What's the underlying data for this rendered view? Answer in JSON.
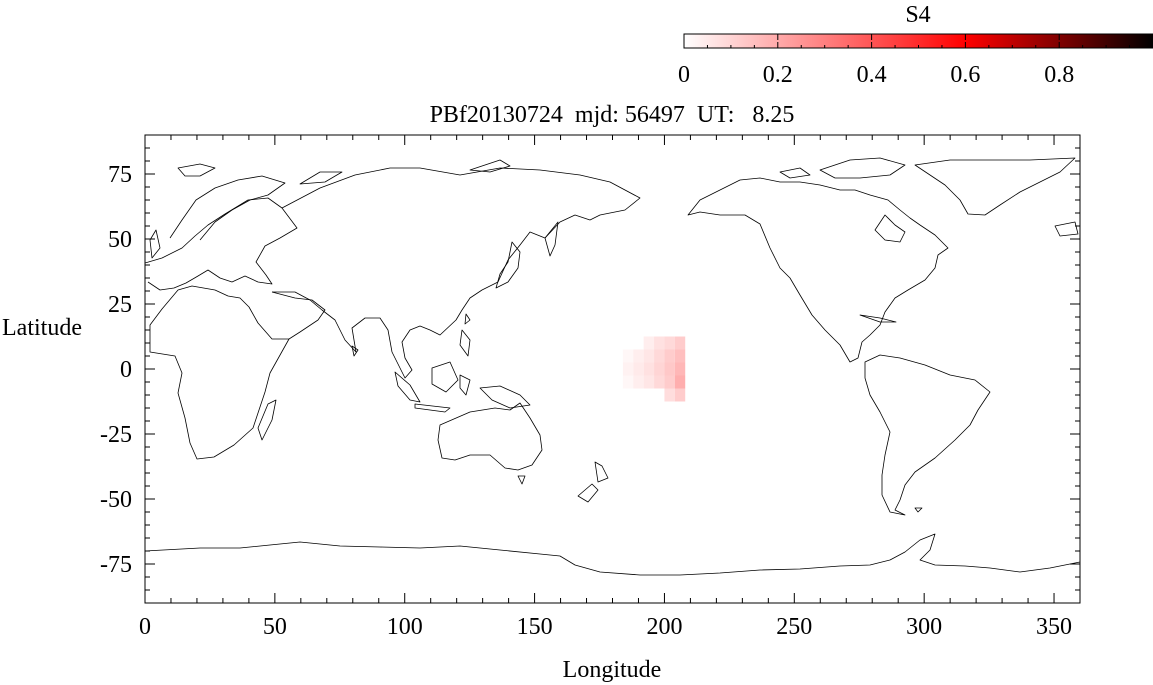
{
  "chart_data": {
    "type": "heatmap",
    "title": "PBf20130724  mjd: 56497  UT:   8.25",
    "xlabel": "Longitude",
    "ylabel": "Latitude",
    "xlim": [
      0,
      360
    ],
    "ylim": [
      -90,
      90
    ],
    "xticks": [
      0,
      50,
      100,
      150,
      200,
      250,
      300,
      350
    ],
    "yticks": [
      75,
      50,
      25,
      0,
      -25,
      -50,
      -75
    ],
    "grid": false,
    "basemap": "world coastlines",
    "colorbar": {
      "label": "S4",
      "placement": "top-right",
      "range": [
        0,
        1
      ],
      "ticks": [
        0,
        0.2,
        0.4,
        0.6,
        0.8
      ],
      "colormap": [
        "#ffffff",
        "#ff0000",
        "#000000"
      ]
    },
    "cells": [
      {
        "lon": 186,
        "lat": 5,
        "s4": 0.02
      },
      {
        "lon": 186,
        "lat": 0,
        "s4": 0.03
      },
      {
        "lon": 186,
        "lat": -5,
        "s4": 0.02
      },
      {
        "lon": 190,
        "lat": 5,
        "s4": 0.04
      },
      {
        "lon": 190,
        "lat": 0,
        "s4": 0.05
      },
      {
        "lon": 190,
        "lat": -5,
        "s4": 0.04
      },
      {
        "lon": 194,
        "lat": 10,
        "s4": 0.04
      },
      {
        "lon": 194,
        "lat": 5,
        "s4": 0.06
      },
      {
        "lon": 194,
        "lat": 0,
        "s4": 0.07
      },
      {
        "lon": 194,
        "lat": -5,
        "s4": 0.06
      },
      {
        "lon": 198,
        "lat": 10,
        "s4": 0.07
      },
      {
        "lon": 198,
        "lat": 5,
        "s4": 0.09
      },
      {
        "lon": 198,
        "lat": 0,
        "s4": 0.1
      },
      {
        "lon": 198,
        "lat": -5,
        "s4": 0.09
      },
      {
        "lon": 202,
        "lat": 10,
        "s4": 0.09
      },
      {
        "lon": 202,
        "lat": 5,
        "s4": 0.12
      },
      {
        "lon": 202,
        "lat": 0,
        "s4": 0.13
      },
      {
        "lon": 202,
        "lat": -5,
        "s4": 0.12
      },
      {
        "lon": 202,
        "lat": -10,
        "s4": 0.08
      },
      {
        "lon": 206,
        "lat": 10,
        "s4": 0.12
      },
      {
        "lon": 206,
        "lat": 5,
        "s4": 0.15
      },
      {
        "lon": 206,
        "lat": 0,
        "s4": 0.17
      },
      {
        "lon": 206,
        "lat": -5,
        "s4": 0.19
      },
      {
        "lon": 206,
        "lat": -10,
        "s4": 0.12
      }
    ]
  }
}
